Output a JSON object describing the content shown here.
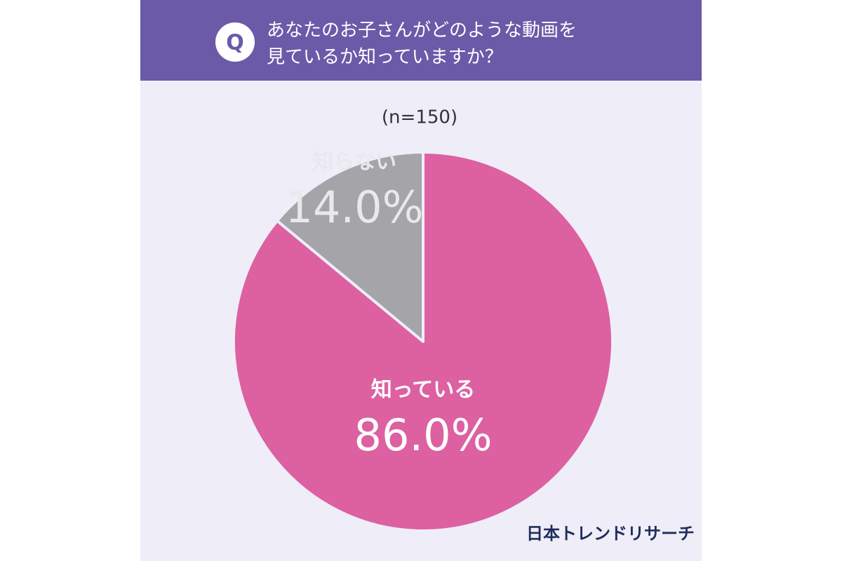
{
  "chart_data": {
    "type": "pie",
    "badge": "Q",
    "title": [
      "あなたのお子さんがどのような動画を",
      "見ているか知っていますか？"
    ],
    "subtitle": "(n=150)",
    "categories": [
      "知っている",
      "知らない"
    ],
    "values": [
      86.0,
      14.0
    ],
    "value_labels": [
      "86.0%",
      "14.0%"
    ],
    "colors": [
      "#dd60a1",
      "#a4a4a9"
    ],
    "source": "日本トレンドリサーチ"
  }
}
